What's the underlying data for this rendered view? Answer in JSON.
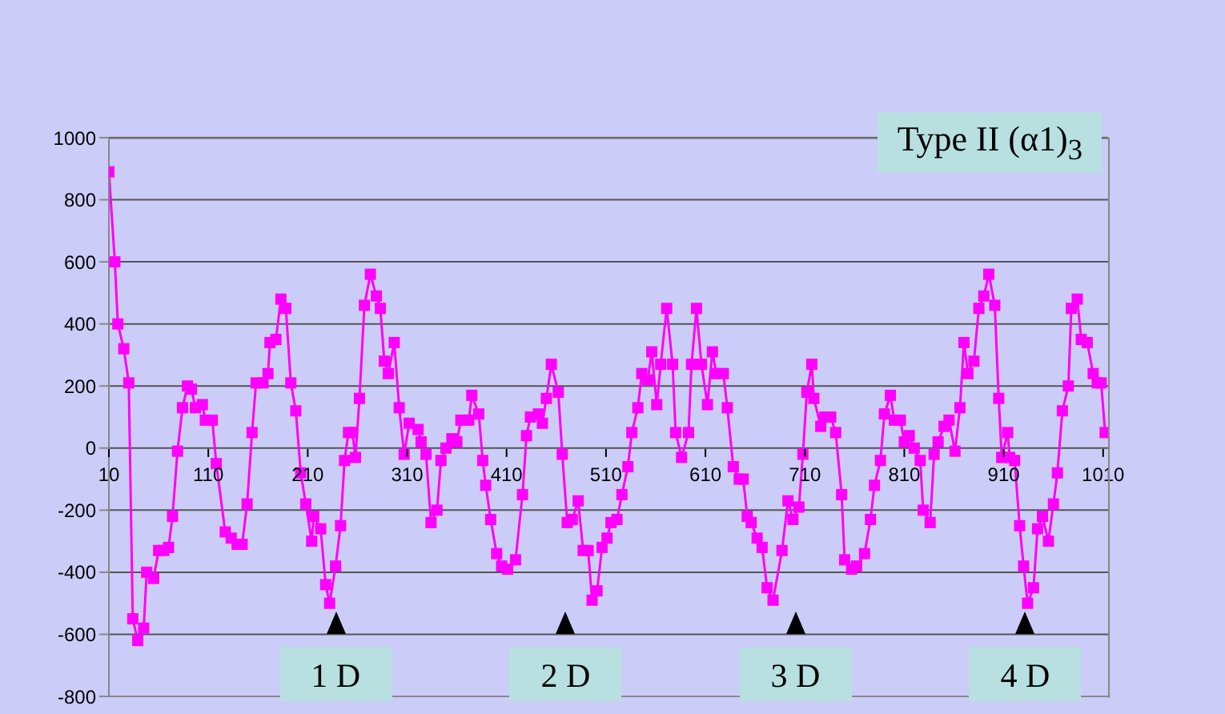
{
  "chart_data": {
    "type": "line",
    "title": "Type II  (α1)$_{3}$",
    "x": [
      10,
      16,
      19,
      25,
      30,
      34,
      39,
      45,
      48,
      55,
      60,
      65,
      70,
      74,
      79,
      84,
      89,
      93,
      97,
      104,
      107,
      114,
      118,
      127,
      133,
      139,
      144,
      149,
      154,
      158,
      165,
      170,
      172,
      178,
      183,
      188,
      193,
      198,
      203,
      208,
      214,
      216,
      223,
      228,
      232,
      238,
      243,
      247,
      251,
      255,
      258,
      262,
      267,
      273,
      279,
      283,
      287,
      291,
      297,
      302,
      307,
      312,
      321,
      324,
      329,
      334,
      340,
      344,
      349,
      355,
      360,
      364,
      372,
      375,
      382,
      386,
      389,
      394,
      400,
      405,
      411,
      419,
      426,
      430,
      434,
      442,
      446,
      450,
      455,
      462,
      466,
      471,
      476,
      482,
      487,
      492,
      496,
      501,
      506,
      511,
      515,
      521,
      526,
      532,
      536,
      542,
      546,
      552,
      556,
      561,
      565,
      571,
      577,
      580,
      586,
      593,
      596,
      601,
      606,
      612,
      617,
      621,
      628,
      632,
      638,
      644,
      648,
      652,
      656,
      662,
      667,
      672,
      678,
      687,
      693,
      698,
      704,
      708,
      712,
      717,
      719,
      726,
      730,
      736,
      741,
      747,
      750,
      757,
      762,
      770,
      776,
      780,
      786,
      790,
      796,
      800,
      806,
      810,
      815,
      820,
      826,
      829,
      836,
      840,
      844,
      850,
      855,
      861,
      866,
      870,
      874,
      880,
      885,
      890,
      895,
      901,
      905,
      908,
      914,
      916,
      921,
      926,
      930,
      934,
      940,
      944,
      949,
      955,
      960,
      964,
      969,
      975,
      978,
      984,
      988,
      994,
      1000,
      1004,
      1008,
      1012
    ],
    "series": [
      {
        "color": "#ff00ff",
        "values": [
          890,
          600,
          400,
          320,
          210,
          -550,
          -620,
          -580,
          -400,
          -420,
          -330,
          -330,
          -320,
          -220,
          -10,
          130,
          200,
          190,
          130,
          140,
          90,
          90,
          -50,
          -270,
          -290,
          -310,
          -310,
          -180,
          50,
          210,
          210,
          240,
          340,
          350,
          480,
          450,
          210,
          120,
          -80,
          -180,
          -300,
          -220,
          -260,
          -440,
          -500,
          -380,
          -250,
          -40,
          50,
          50,
          -30,
          160,
          460,
          560,
          490,
          450,
          280,
          240,
          340,
          130,
          -20,
          80,
          60,
          20,
          -20,
          -240,
          -200,
          -40,
          0,
          30,
          20,
          90,
          90,
          170,
          110,
          -40,
          -120,
          -230,
          -340,
          -380,
          -390,
          -360,
          -150,
          40,
          100,
          110,
          80,
          160,
          270,
          180,
          -20,
          -240,
          -230,
          -170,
          -330,
          -330,
          -490,
          -460,
          -320,
          -290,
          -240,
          -230,
          -150,
          -60,
          50,
          130,
          240,
          220,
          310,
          140,
          270,
          450,
          270,
          50,
          -30,
          50,
          270,
          450,
          270,
          140,
          310,
          240,
          240,
          130,
          -60,
          -100,
          -100,
          -220,
          -240,
          -290,
          -320,
          -450,
          -490,
          -330,
          -170,
          -230,
          -190,
          -20,
          180,
          270,
          160,
          70,
          100,
          100,
          50,
          -150,
          -360,
          -390,
          -380,
          -340,
          -230,
          -120,
          -40,
          110,
          170,
          90,
          90,
          20,
          40,
          0,
          -40,
          -200,
          -240,
          -20,
          20,
          70,
          90,
          -10,
          130,
          340,
          240,
          280,
          450,
          490,
          560,
          460,
          160,
          -30,
          50,
          -30,
          -40,
          -250,
          -380,
          -500,
          -450,
          -260,
          -220,
          -300,
          -180,
          -80,
          120,
          200,
          450,
          480,
          350,
          340,
          240,
          210,
          210,
          50
        ]
      }
    ],
    "xlim": [
      10,
      1015
    ],
    "xticks": [
      10,
      110,
      210,
      310,
      410,
      510,
      610,
      710,
      810,
      910,
      1010
    ],
    "ylim": [
      -800,
      1000
    ],
    "yticks": [
      -800,
      -600,
      -400,
      -200,
      0,
      200,
      400,
      600,
      800,
      1000
    ],
    "grid": "y",
    "marker": "square",
    "line_style": "solid",
    "annotations": [
      "1 D",
      "2 D",
      "3 D",
      "4 D"
    ]
  }
}
